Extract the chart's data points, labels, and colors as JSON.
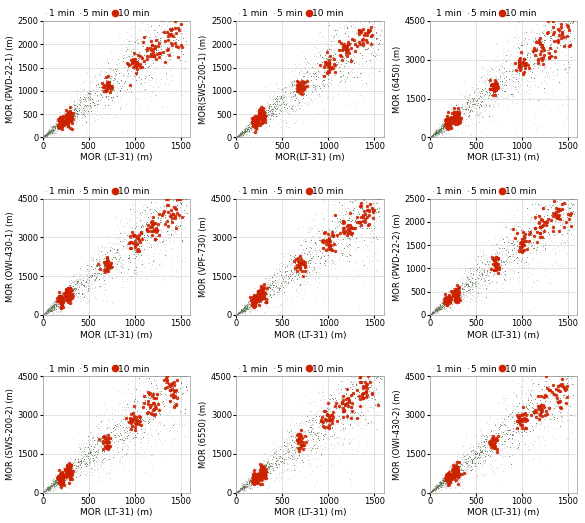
{
  "subplots": [
    {
      "ylabel": "MOR (PWD-22-1) (m)",
      "xlabel": "MOR (LT-31) (m)",
      "ylim": [
        0,
        2500
      ],
      "xlim": [
        0,
        1600
      ],
      "yticks": [
        0,
        500,
        1000,
        1500,
        2000,
        2500
      ]
    },
    {
      "ylabel": "MOR(SWS-200-1) (m)",
      "xlabel": "MOR(LT-31) (m)",
      "ylim": [
        0,
        2500
      ],
      "xlim": [
        0,
        1600
      ],
      "yticks": [
        0,
        500,
        1000,
        1500,
        2000,
        2500
      ]
    },
    {
      "ylabel": "MOR (6450) (m)",
      "xlabel": "MOR (LT-31) (m)",
      "ylim": [
        0,
        4500
      ],
      "xlim": [
        0,
        1600
      ],
      "yticks": [
        0,
        1500,
        3000,
        4500
      ]
    },
    {
      "ylabel": "MOR (OWI-430-1) (m)",
      "xlabel": "MOR (LT-31) (m)",
      "ylim": [
        0,
        4500
      ],
      "xlim": [
        0,
        1600
      ],
      "yticks": [
        0,
        1500,
        3000,
        4500
      ]
    },
    {
      "ylabel": "MOR (VPF-730) (m)",
      "xlabel": "MOR (LT-31) (m)",
      "ylim": [
        0,
        4500
      ],
      "xlim": [
        0,
        1600
      ],
      "yticks": [
        0,
        1500,
        3000,
        4500
      ]
    },
    {
      "ylabel": "MOR (PWD-22-2) (m)",
      "xlabel": "MOR (LT-31) (m)",
      "ylim": [
        0,
        2500
      ],
      "xlim": [
        0,
        1600
      ],
      "yticks": [
        0,
        500,
        1000,
        1500,
        2000,
        2500
      ]
    },
    {
      "ylabel": "MOR (SWS-200-2) (m)",
      "xlabel": "MOR (LT-31) (m)",
      "ylim": [
        0,
        4500
      ],
      "xlim": [
        0,
        1600
      ],
      "yticks": [
        0,
        1500,
        3000,
        4500
      ]
    },
    {
      "ylabel": "MOR (6550) (m)",
      "xlabel": "MOR (LT-31) (m)",
      "ylim": [
        0,
        4500
      ],
      "xlim": [
        0,
        1600
      ],
      "yticks": [
        0,
        1500,
        3000,
        4500
      ]
    },
    {
      "ylabel": "MOR (OWI-430-2) (m)",
      "xlabel": "MOR (LT-31) (m)",
      "ylim": [
        0,
        4500
      ],
      "xlim": [
        0,
        1600
      ],
      "yticks": [
        0,
        1500,
        3000,
        4500
      ]
    }
  ],
  "legend_labels": [
    "1 min",
    "5 min",
    "10 min"
  ],
  "colors": {
    "1min": "#b0b0b0",
    "5min": "#5a7a52",
    "10min": "#cc2200"
  },
  "background_color": "#ffffff",
  "grid_color": "#cccccc",
  "xlabel_fontsize": 6.5,
  "ylabel_fontsize": 6,
  "tick_fontsize": 6,
  "legend_fontsize": 6.5
}
